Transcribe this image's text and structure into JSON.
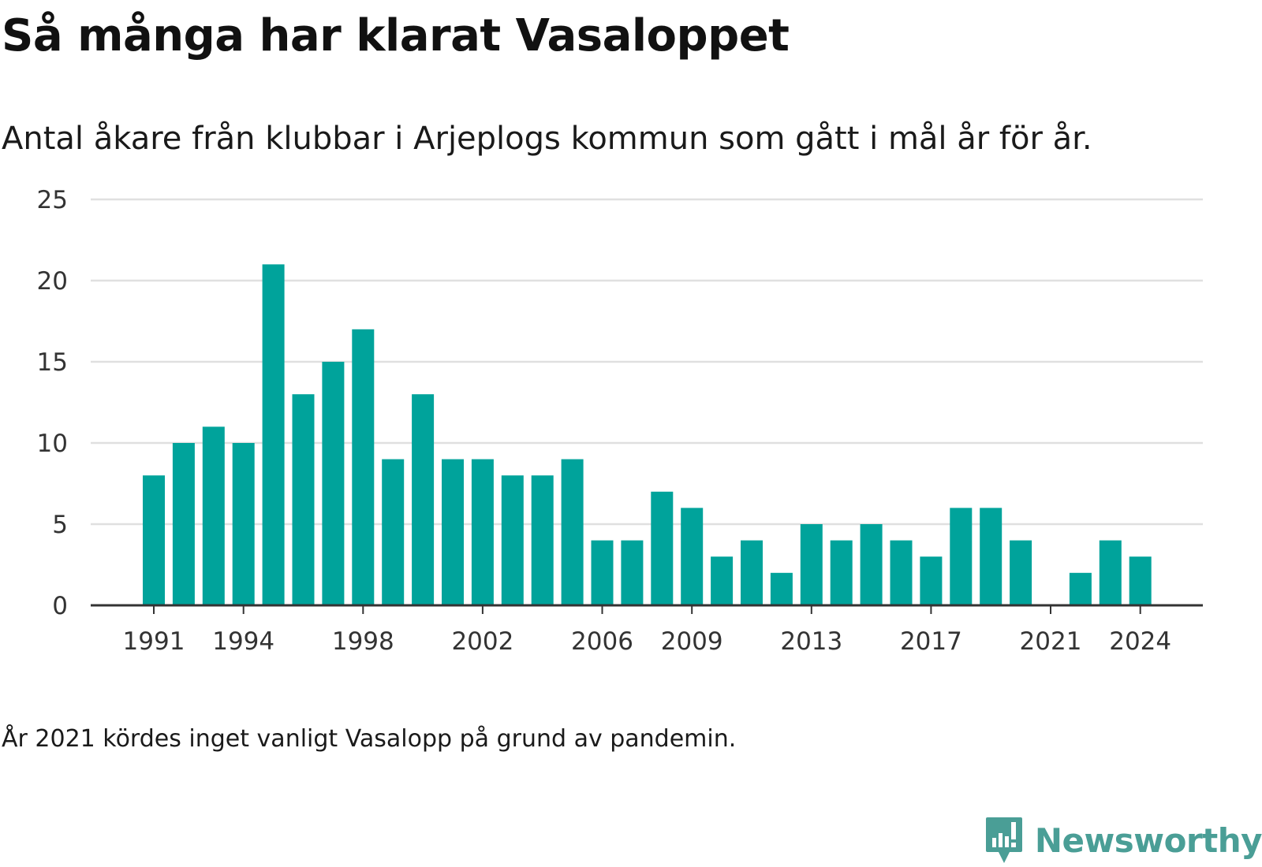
{
  "title": "Så många har klarat Vasaloppet",
  "subtitle": "Antal åkare från klubbar i Arjeplogs kommun som gått i mål år för år.",
  "note": "År 2021 kördes inget vanligt Vasalopp på grund av pandemin.",
  "brand": {
    "name": "Newsworthy",
    "icon": "newsworthy-logo-icon",
    "color": "#4a9e96"
  },
  "colors": {
    "bar": "#00a39b",
    "grid": "#e0e0e0",
    "axis": "#333333"
  },
  "chart_data": {
    "type": "bar",
    "categories": [
      1991,
      1992,
      1993,
      1994,
      1995,
      1996,
      1997,
      1998,
      1999,
      2000,
      2001,
      2002,
      2003,
      2004,
      2005,
      2006,
      2007,
      2008,
      2009,
      2010,
      2011,
      2012,
      2013,
      2014,
      2015,
      2016,
      2017,
      2018,
      2019,
      2020,
      2021,
      2022,
      2023,
      2024
    ],
    "values": [
      8,
      10,
      11,
      10,
      21,
      13,
      15,
      17,
      9,
      13,
      9,
      9,
      8,
      8,
      9,
      4,
      4,
      7,
      6,
      3,
      4,
      2,
      5,
      4,
      5,
      4,
      3,
      6,
      6,
      4,
      0,
      2,
      4,
      3
    ],
    "x_ticks": [
      "1991",
      "1994",
      "1998",
      "2002",
      "2006",
      "2009",
      "2013",
      "2017",
      "2021",
      "2024"
    ],
    "y_ticks": [
      "0",
      "5",
      "10",
      "15",
      "20",
      "25"
    ],
    "ylim": [
      0,
      25
    ],
    "grid": true,
    "title": "Så många har klarat Vasaloppet",
    "subtitle": "Antal åkare från klubbar i Arjeplogs kommun som gått i mål år för år.",
    "xlabel": "",
    "ylabel": ""
  }
}
